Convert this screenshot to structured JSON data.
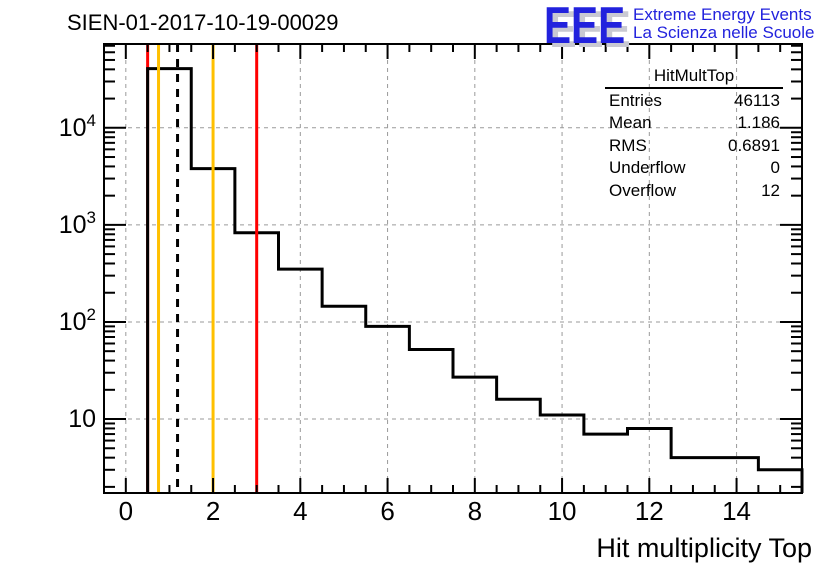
{
  "page": {
    "title": "SIEN-01-2017-10-19-00029"
  },
  "logo": {
    "text": "EEE",
    "tagline1": "Extreme Energy Events",
    "tagline2": "La Scienza nelle Scuole",
    "blue": "#2222dd",
    "shadow": "#c9c9d2"
  },
  "stats": {
    "title": "HitMultTop",
    "rows": [
      {
        "label": "Entries",
        "value": "46113"
      },
      {
        "label": "Mean",
        "value": "1.186"
      },
      {
        "label": "RMS",
        "value": "0.6891"
      },
      {
        "label": "Underflow",
        "value": "0"
      },
      {
        "label": "Overflow",
        "value": "12"
      }
    ]
  },
  "chart_data": {
    "type": "bar",
    "subtype": "step-histogram",
    "title": "SIEN-01-2017-10-19-00029",
    "xlabel": "Hit multiplicity Top",
    "ylabel": "",
    "bin_centers": [
      0,
      1,
      2,
      3,
      4,
      5,
      6,
      7,
      8,
      9,
      10,
      11,
      12,
      13,
      14,
      15
    ],
    "bin_width": 1,
    "values": [
      0,
      40700,
      3800,
      830,
      350,
      145,
      90,
      52,
      27,
      16,
      11,
      7,
      8,
      4,
      4,
      3
    ],
    "entries": 46113,
    "mean": 1.186,
    "rms": 0.6891,
    "underflow": 0,
    "overflow": 12,
    "xlim": [
      -0.5,
      15.5
    ],
    "ylim": [
      1.73,
      73000
    ],
    "yscale": "log",
    "grid": true,
    "legend_position": "none",
    "x_major_ticks": [
      0,
      2,
      4,
      6,
      8,
      10,
      12,
      14
    ],
    "x_minor_step": 0.5,
    "y_ticks": [
      {
        "value": 10,
        "label": "10",
        "exp": ""
      },
      {
        "value": 100,
        "label": "10",
        "exp": "2"
      },
      {
        "value": 1000,
        "label": "10",
        "exp": "3"
      },
      {
        "value": 10000,
        "label": "10",
        "exp": "4"
      }
    ],
    "line_color": "#000000",
    "grid_color": "#9a9a9a",
    "marker_lines": [
      {
        "x": 0.5,
        "color": "#ff0000",
        "style": "solid",
        "layer": "behind"
      },
      {
        "x": 0.75,
        "color": "#ffc000",
        "style": "solid",
        "layer": "front"
      },
      {
        "x": 1.186,
        "color": "#000000",
        "style": "dashed",
        "layer": "front"
      },
      {
        "x": 2,
        "color": "#ffc000",
        "style": "solid",
        "layer": "front"
      },
      {
        "x": 3,
        "color": "#ff0000",
        "style": "solid",
        "layer": "front"
      }
    ]
  }
}
